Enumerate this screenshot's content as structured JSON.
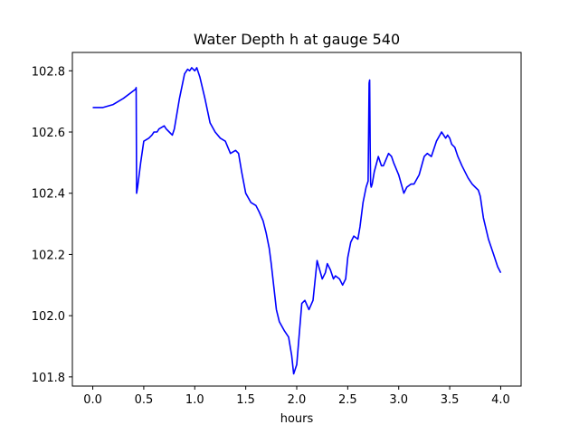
{
  "chart_data": {
    "type": "line",
    "title": "Water Depth h at gauge 540",
    "xlabel": "hours",
    "ylabel": "",
    "xlim": [
      -0.2,
      4.2
    ],
    "ylim": [
      101.77,
      102.86
    ],
    "grid": false,
    "legend": "none",
    "x_ticks": [
      0.0,
      0.5,
      1.0,
      1.5,
      2.0,
      2.5,
      3.0,
      3.5,
      4.0
    ],
    "x_tick_labels": [
      "0.0",
      "0.5",
      "1.0",
      "1.5",
      "2.0",
      "2.5",
      "3.0",
      "3.5",
      "4.0"
    ],
    "y_ticks": [
      101.8,
      102.0,
      102.2,
      102.4,
      102.6,
      102.8
    ],
    "y_tick_labels": [
      "101.8",
      "102.0",
      "102.2",
      "102.4",
      "102.6",
      "102.8"
    ],
    "series": [
      {
        "color": "#0000ff",
        "x": [
          0.0,
          0.1,
          0.2,
          0.3,
          0.42,
          0.425,
          0.43,
          0.44,
          0.47,
          0.5,
          0.55,
          0.58,
          0.6,
          0.63,
          0.65,
          0.7,
          0.72,
          0.75,
          0.78,
          0.8,
          0.85,
          0.9,
          0.93,
          0.95,
          0.97,
          1.0,
          1.02,
          1.05,
          1.1,
          1.15,
          1.2,
          1.25,
          1.3,
          1.35,
          1.4,
          1.43,
          1.46,
          1.5,
          1.55,
          1.6,
          1.63,
          1.67,
          1.7,
          1.73,
          1.75,
          1.8,
          1.83,
          1.88,
          1.92,
          1.95,
          1.97,
          2.0,
          2.05,
          2.08,
          2.12,
          2.16,
          2.2,
          2.25,
          2.28,
          2.3,
          2.33,
          2.36,
          2.38,
          2.42,
          2.45,
          2.48,
          2.5,
          2.53,
          2.56,
          2.6,
          2.62,
          2.65,
          2.68,
          2.7,
          2.71,
          2.715,
          2.72,
          2.725,
          2.73,
          2.74,
          2.76,
          2.8,
          2.83,
          2.85,
          2.9,
          2.93,
          2.95,
          3.0,
          3.05,
          3.08,
          3.12,
          3.15,
          3.2,
          3.25,
          3.28,
          3.32,
          3.37,
          3.42,
          3.46,
          3.48,
          3.5,
          3.52,
          3.55,
          3.58,
          3.62,
          3.68,
          3.72,
          3.75,
          3.78,
          3.8,
          3.83,
          3.88,
          3.93,
          3.97,
          4.0
        ],
        "y": [
          102.68,
          102.68,
          102.69,
          102.71,
          102.74,
          102.745,
          102.4,
          102.42,
          102.5,
          102.57,
          102.58,
          102.59,
          102.6,
          102.6,
          102.61,
          102.62,
          102.61,
          102.6,
          102.59,
          102.61,
          102.71,
          102.79,
          102.805,
          102.8,
          102.81,
          102.8,
          102.81,
          102.78,
          102.71,
          102.63,
          102.6,
          102.58,
          102.57,
          102.53,
          102.54,
          102.53,
          102.47,
          102.4,
          102.37,
          102.36,
          102.34,
          102.31,
          102.27,
          102.22,
          102.17,
          102.02,
          101.98,
          101.95,
          101.93,
          101.87,
          101.81,
          101.84,
          102.04,
          102.05,
          102.02,
          102.05,
          102.18,
          102.12,
          102.14,
          102.17,
          102.15,
          102.12,
          102.13,
          102.12,
          102.1,
          102.12,
          102.19,
          102.24,
          102.26,
          102.25,
          102.29,
          102.37,
          102.42,
          102.44,
          102.76,
          102.77,
          102.54,
          102.43,
          102.42,
          102.43,
          102.47,
          102.52,
          102.49,
          102.49,
          102.53,
          102.52,
          102.5,
          102.46,
          102.4,
          102.42,
          102.43,
          102.43,
          102.46,
          102.52,
          102.53,
          102.52,
          102.57,
          102.6,
          102.58,
          102.59,
          102.58,
          102.56,
          102.55,
          102.52,
          102.49,
          102.45,
          102.43,
          102.42,
          102.41,
          102.39,
          102.32,
          102.25,
          102.2,
          102.16,
          102.14
        ]
      }
    ]
  }
}
